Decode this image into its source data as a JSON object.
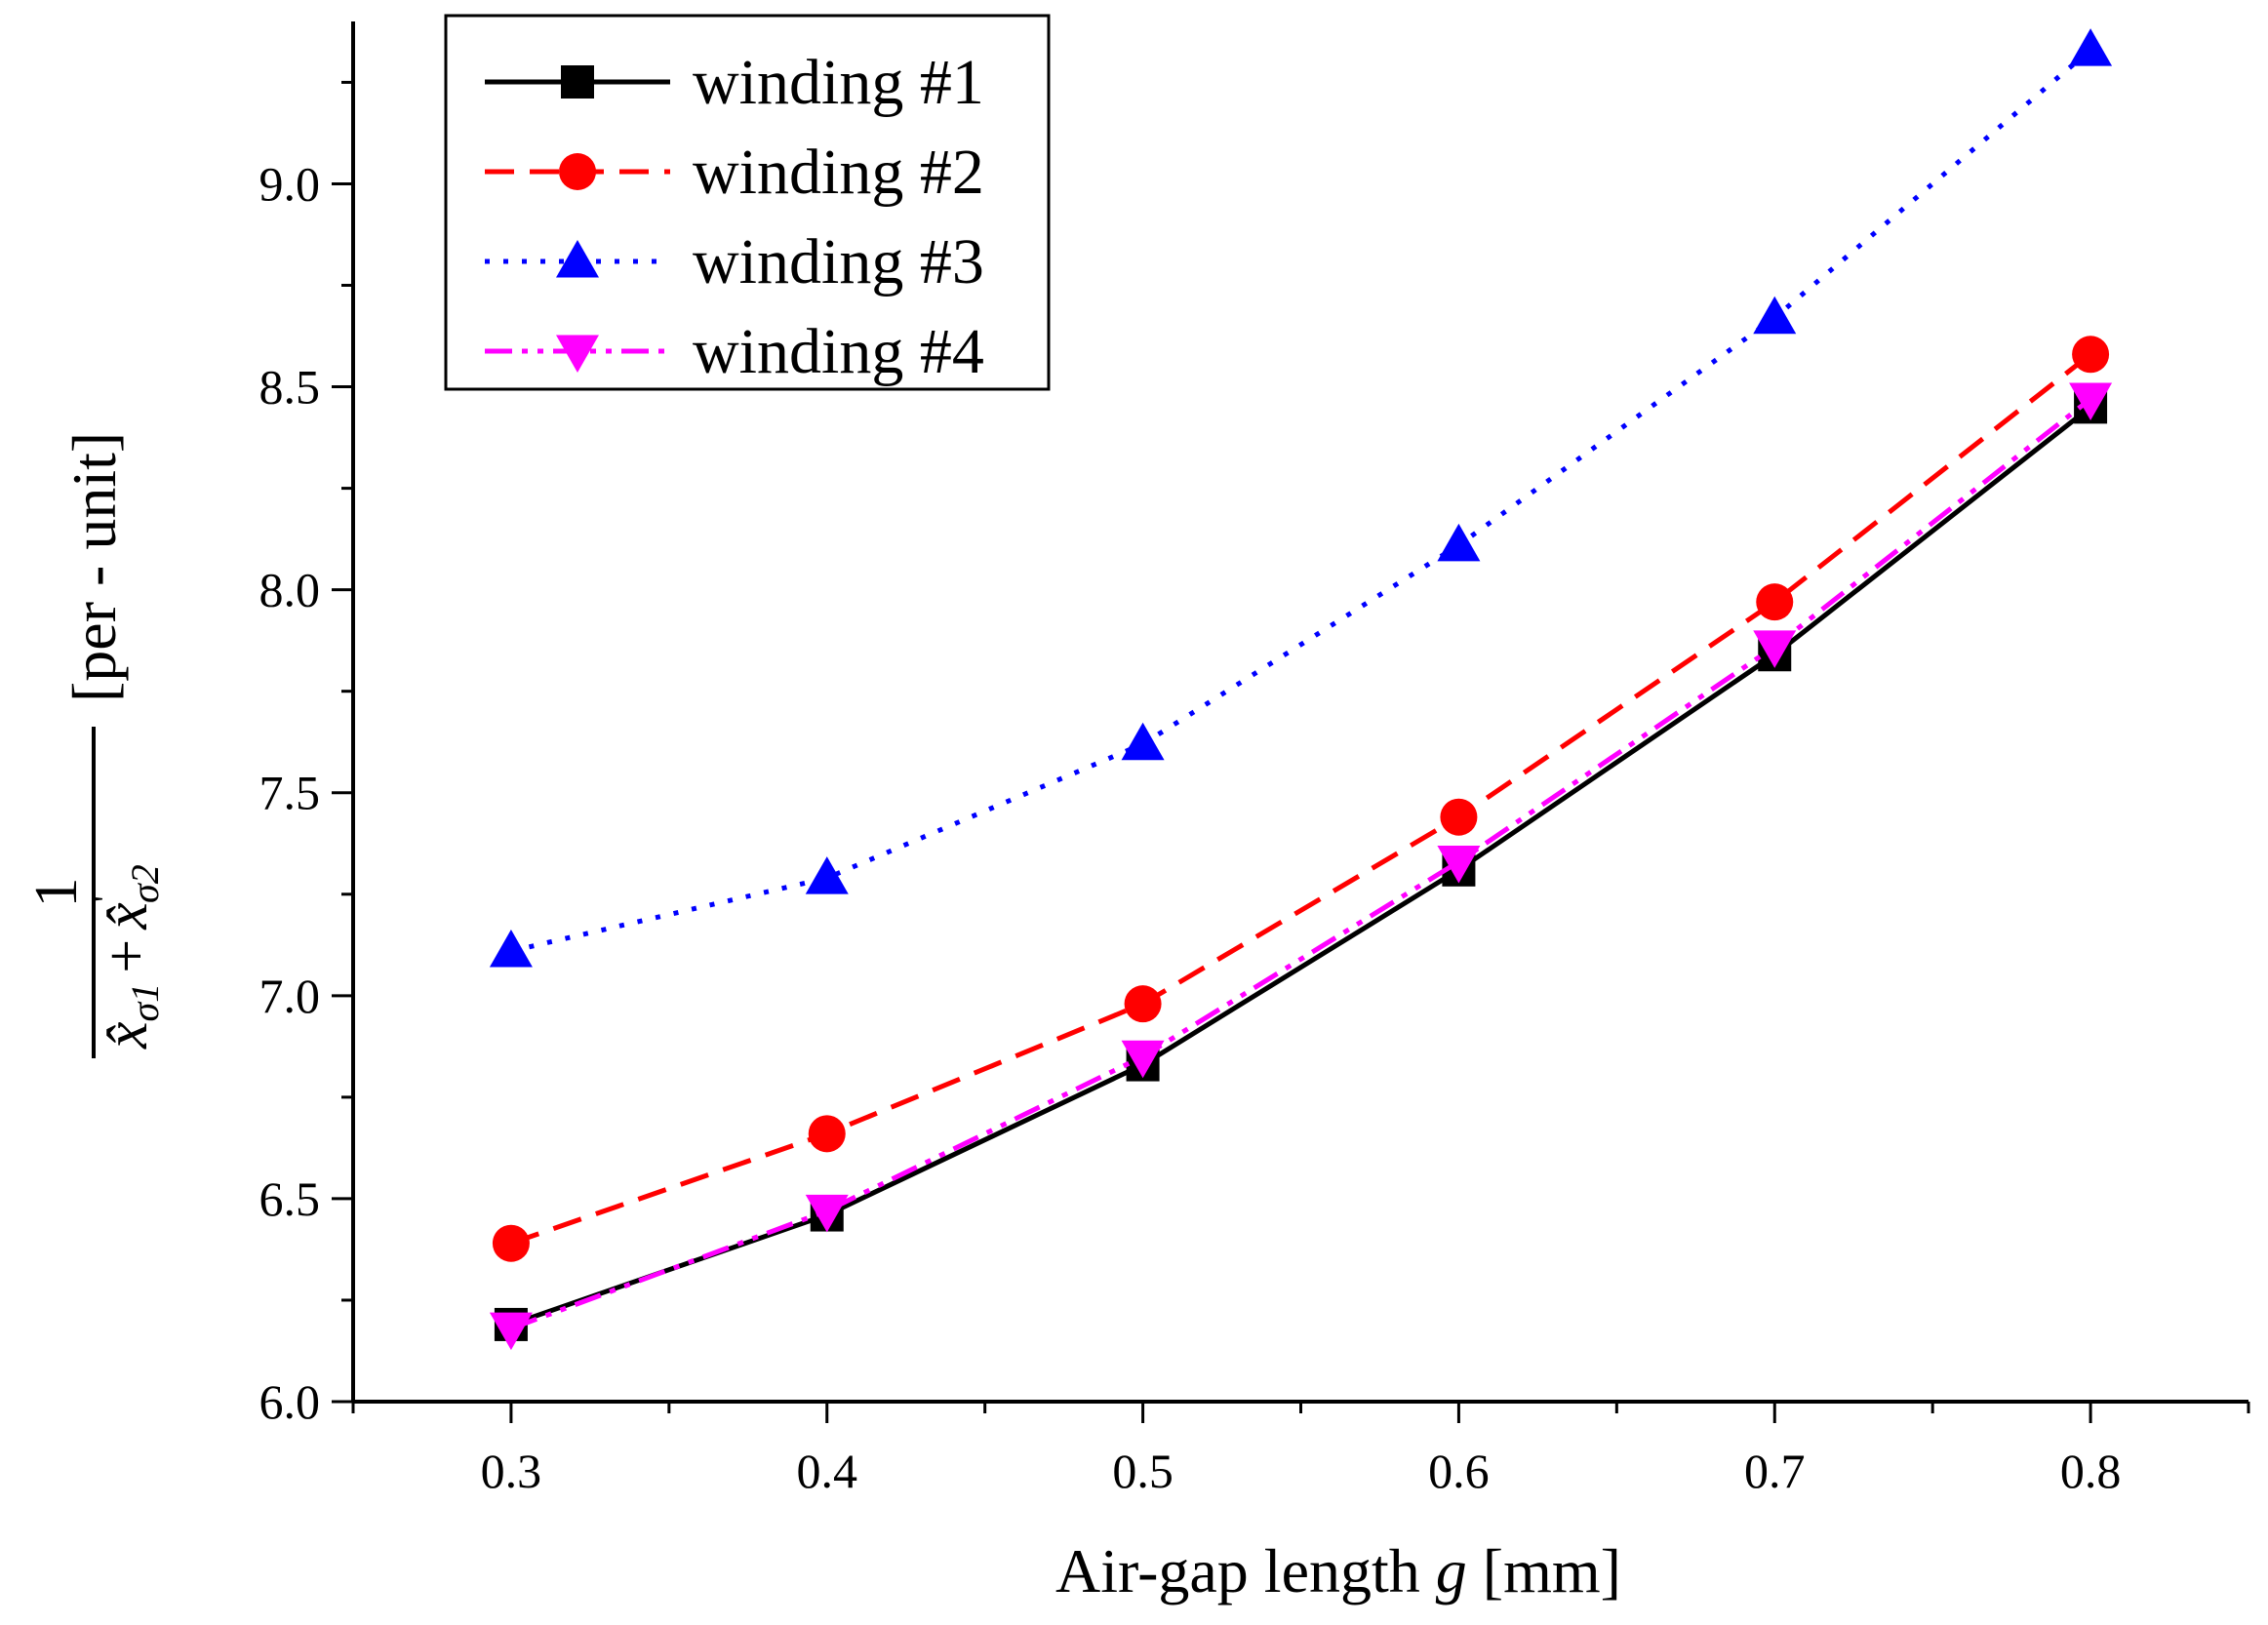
{
  "chart_data": {
    "type": "line",
    "xlabel_prefix": "Air-gap length ",
    "xlabel_var": "g",
    "xlabel_suffix": " [mm]",
    "ylabel": {
      "numerator": "1",
      "term1_base": "x̂",
      "term1_sub": "σ1",
      "plus": "+",
      "term2_base": "x̂",
      "term2_prime": "'",
      "term2_sub": "σ2",
      "unit": "[per - unit]"
    },
    "x": [
      0.3,
      0.4,
      0.5,
      0.6,
      0.7,
      0.8
    ],
    "xlim": [
      0.25,
      0.85
    ],
    "ylim": [
      6.0,
      9.4
    ],
    "xticks": [
      "0.3",
      "0.4",
      "0.5",
      "0.6",
      "0.7",
      "0.8"
    ],
    "yticks": [
      "6.0",
      "6.5",
      "7.0",
      "7.5",
      "8.0",
      "8.5",
      "9.0"
    ],
    "grid": false,
    "legend_position": "top-left",
    "series": [
      {
        "name": "winding #1",
        "values": [
          6.19,
          6.46,
          6.83,
          7.31,
          7.84,
          8.45
        ],
        "color": "#000000",
        "marker": "square",
        "line": "solid"
      },
      {
        "name": "winding #2",
        "values": [
          6.39,
          6.66,
          6.98,
          7.44,
          7.97,
          8.58
        ],
        "color": "#ff0000",
        "marker": "circle",
        "line": "dashed"
      },
      {
        "name": "winding #3",
        "values": [
          7.11,
          7.29,
          7.62,
          8.11,
          8.67,
          9.33
        ],
        "color": "#0000ff",
        "marker": "triangle-up",
        "line": "dotted"
      },
      {
        "name": "winding #4",
        "values": [
          6.18,
          6.47,
          6.85,
          7.33,
          7.86,
          8.47
        ],
        "color": "#ff00ff",
        "marker": "triangle-down",
        "line": "dash-dot-dot"
      }
    ]
  }
}
